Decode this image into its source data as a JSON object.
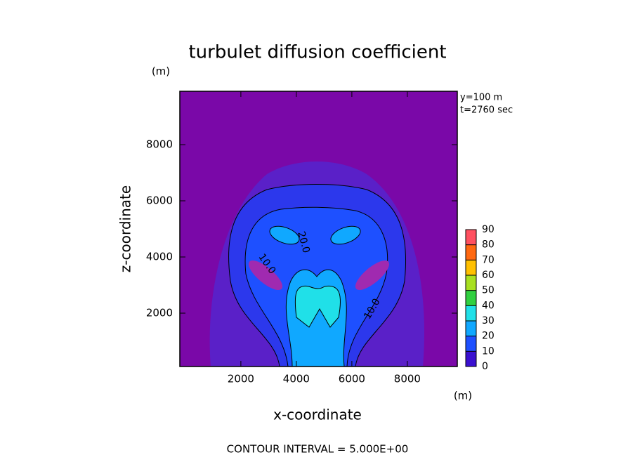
{
  "chart_data": {
    "type": "contour",
    "title": "turbulet diffusion coefficient",
    "x_label": "x-coordinate",
    "y_label": "z-coordinate",
    "x_unit": "(m)",
    "y_unit": "(m)",
    "info": [
      "y=100 m",
      "t=2760 sec"
    ],
    "footer": "CONTOUR INTERVAL = 5.000E+00",
    "xlim": [
      -200,
      9800
    ],
    "ylim": [
      100,
      9900
    ],
    "xticks": [
      2000,
      4000,
      6000,
      8000
    ],
    "yticks": [
      2000,
      4000,
      6000,
      8000
    ],
    "colorbar": {
      "ticks": [
        0,
        10,
        20,
        30,
        40,
        50,
        60,
        70,
        80,
        90
      ],
      "colors": [
        "#3a10d0",
        "#1e50ff",
        "#10a8ff",
        "#20e0e8",
        "#30d040",
        "#a8e020",
        "#ffc000",
        "#ff6810",
        "#ff5060"
      ]
    },
    "contour_labels": [
      {
        "value": 20,
        "label": "20.0"
      },
      {
        "value": 10,
        "label": "10.0"
      },
      {
        "value": 10,
        "label": "10.0"
      }
    ]
  }
}
